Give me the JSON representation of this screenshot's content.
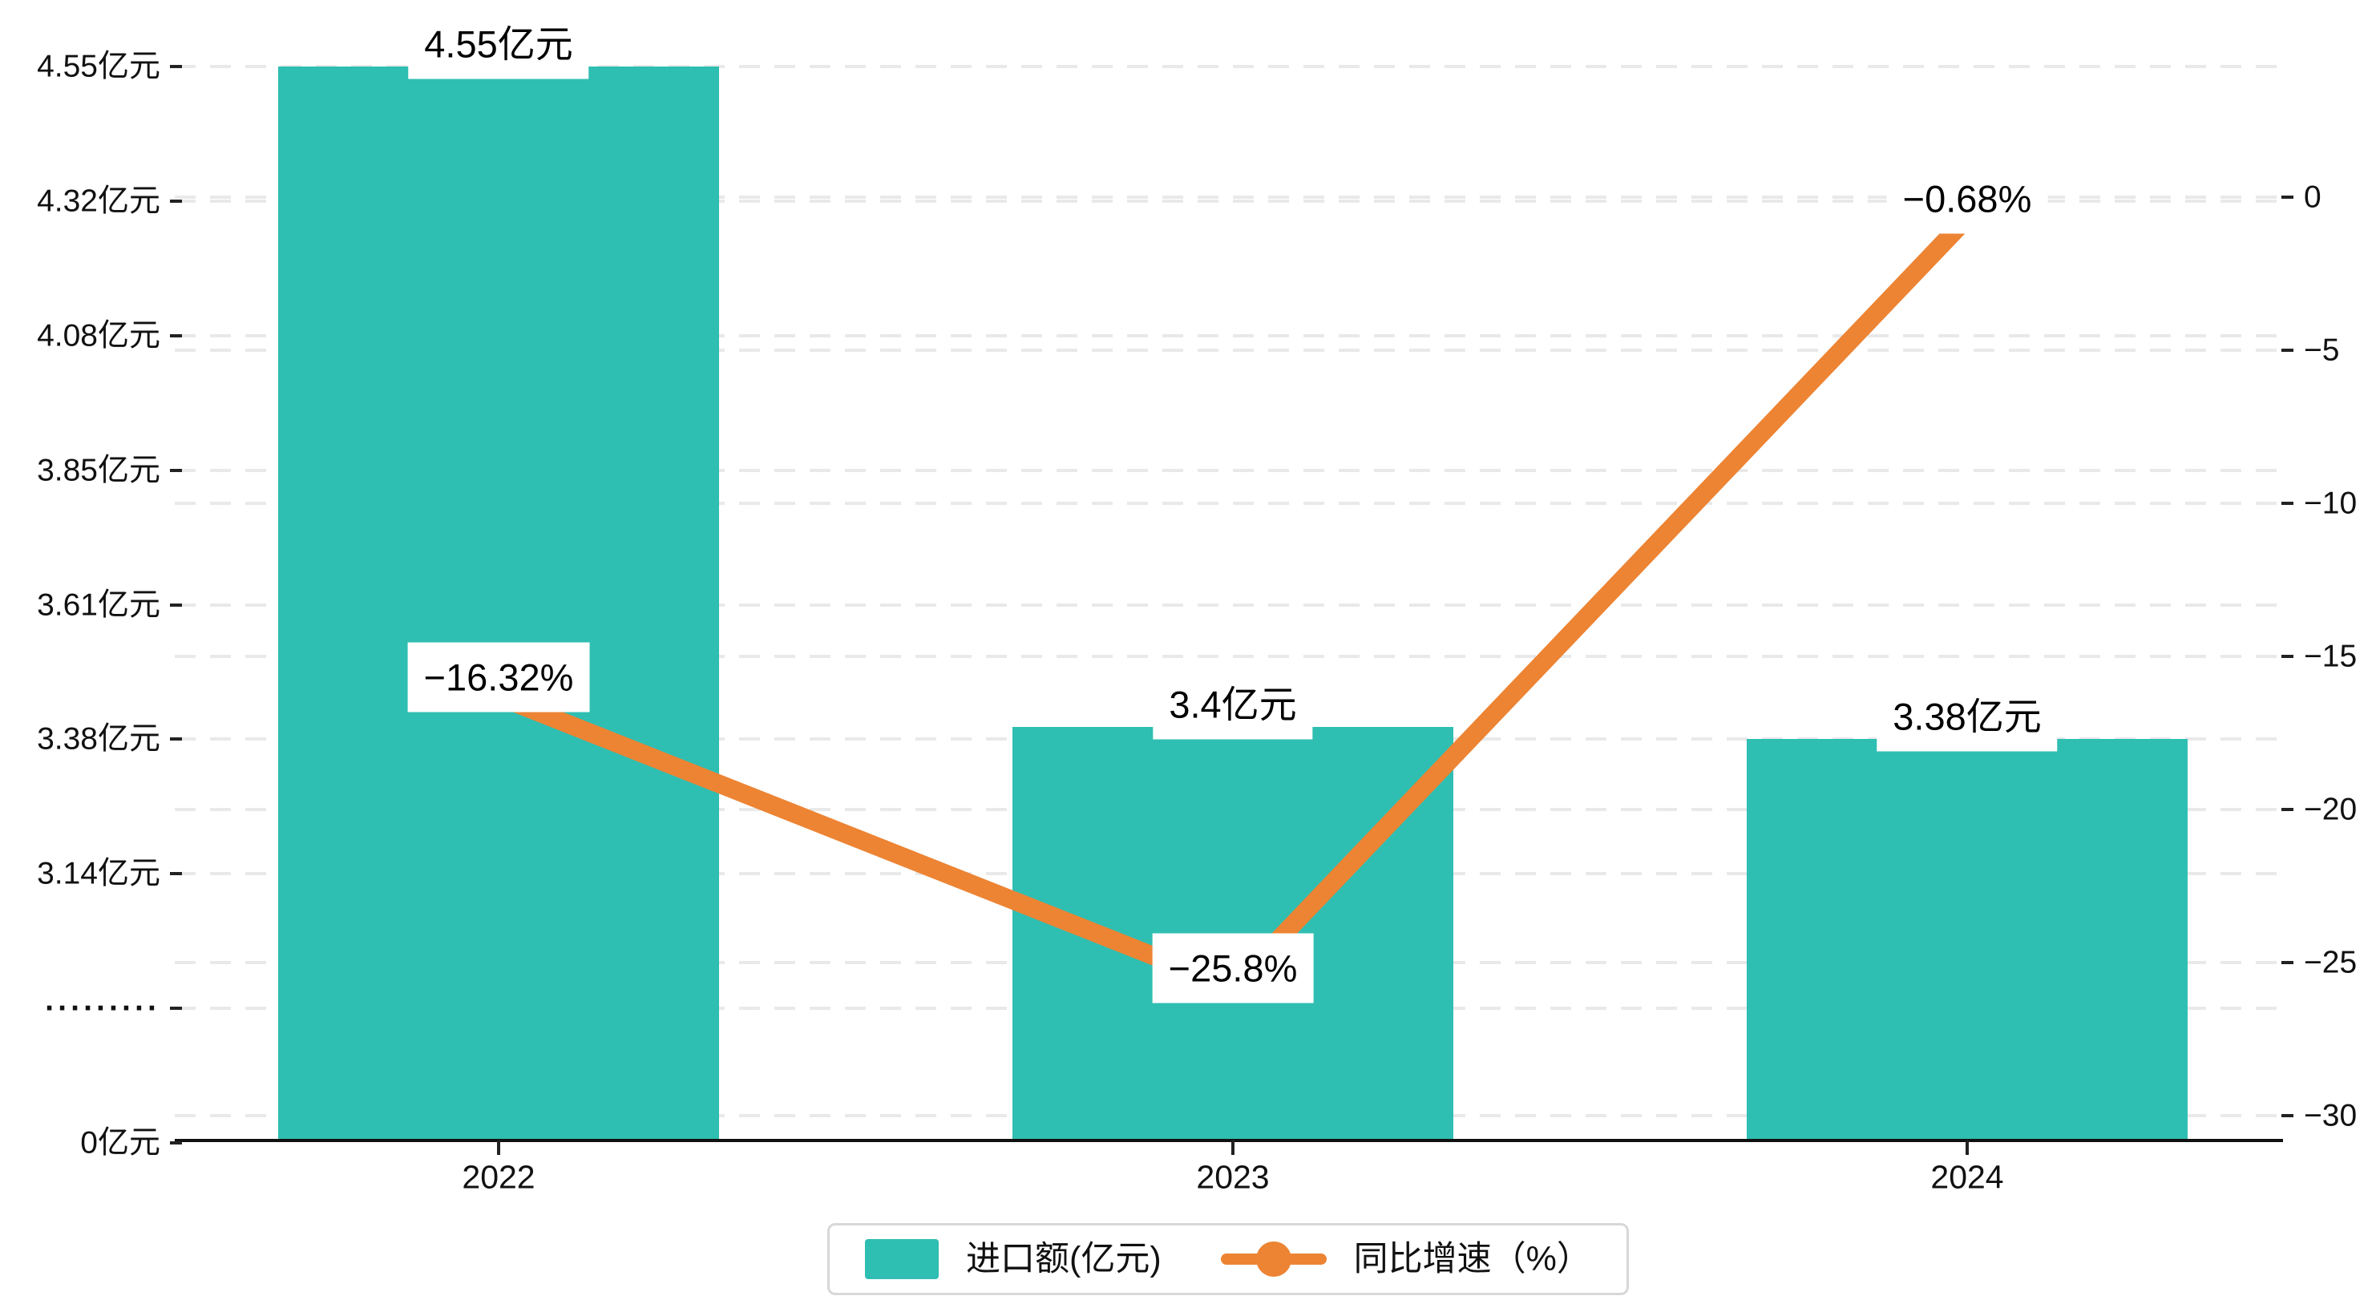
{
  "chart_data": {
    "type": "combo-bar-line",
    "categories": [
      "2022",
      "2023",
      "2024"
    ],
    "series": [
      {
        "name": "进口额(亿元)",
        "type": "bar",
        "values": [
          4.55,
          3.4,
          3.38
        ],
        "labels": [
          "4.55亿元",
          "3.4亿元",
          "3.38亿元"
        ],
        "color": "#2fbeb2"
      },
      {
        "name": "同比增速（%）",
        "type": "line",
        "values": [
          -16.32,
          -25.8,
          -0.68
        ],
        "labels": [
          "−16.32%",
          "−25.8%",
          "−0.68%"
        ],
        "color": "#ec8434"
      }
    ],
    "left_axis": {
      "ticks": [
        "4.55亿元",
        "4.32亿元",
        "4.08亿元",
        "3.85亿元",
        "3.61亿元",
        "3.38亿元",
        "3.14亿元",
        "·········",
        "0亿元"
      ],
      "tick_values": [
        4.55,
        4.32,
        4.08,
        3.85,
        3.61,
        3.38,
        3.14,
        null,
        0
      ],
      "axis_break": true
    },
    "right_axis": {
      "ticks": [
        "0",
        "−5",
        "−10",
        "−15",
        "−20",
        "−25",
        "−30"
      ],
      "tick_values": [
        0,
        -5,
        -10,
        -15,
        -20,
        -25,
        -30
      ]
    },
    "x_axis": {
      "labels": [
        "2022",
        "2023",
        "2024"
      ]
    },
    "legend": [
      {
        "label": "进口额(亿元)",
        "marker": "bar-swatch",
        "color": "#2fbeb2"
      },
      {
        "label": "同比增速（%）",
        "marker": "line-dot",
        "color": "#ec8434"
      }
    ],
    "grid": true,
    "gridline_color": "#e9e9e9",
    "background_color": "#ffffff"
  }
}
